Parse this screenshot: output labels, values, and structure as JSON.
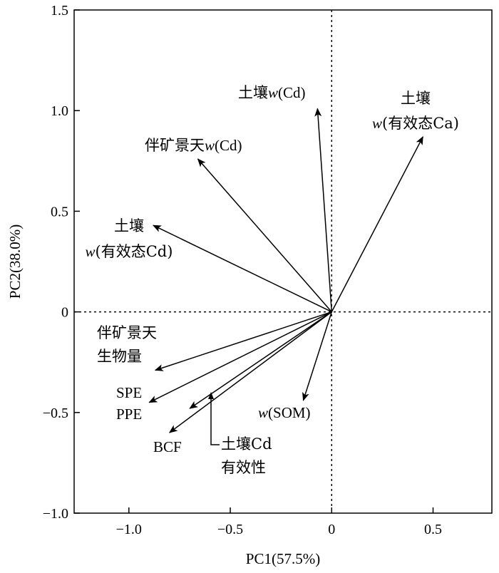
{
  "chart_data": {
    "type": "biplot",
    "xlabel": "PC1(57.5%)",
    "ylabel": "PC2(38.0%)",
    "xlim": [
      -1.27,
      0.79
    ],
    "ylim": [
      -1.0,
      1.5
    ],
    "x_ticks": [
      {
        "value": -1.0,
        "label": "−1.0"
      },
      {
        "value": -0.5,
        "label": "−0.5"
      },
      {
        "value": 0,
        "label": "0"
      },
      {
        "value": 0.5,
        "label": "0.5"
      }
    ],
    "y_ticks": [
      {
        "value": -1.0,
        "label": "−1.0"
      },
      {
        "value": -0.5,
        "label": "−0.5"
      },
      {
        "value": 0,
        "label": "0"
      },
      {
        "value": 0.5,
        "label": "0.5"
      },
      {
        "value": 1.0,
        "label": "1.0"
      },
      {
        "value": 1.5,
        "label": "1.5"
      }
    ],
    "reference_lines": {
      "x": 0,
      "y": 0,
      "style": "dotted"
    },
    "vectors": [
      {
        "id": "soil-cd",
        "x": -0.07,
        "y": 1.01
      },
      {
        "id": "soil-available-ca",
        "x": 0.45,
        "y": 0.87
      },
      {
        "id": "plant-cd",
        "x": -0.66,
        "y": 0.76
      },
      {
        "id": "soil-available-cd",
        "x": -0.88,
        "y": 0.43
      },
      {
        "id": "plant-biomass",
        "x": -0.87,
        "y": -0.29
      },
      {
        "id": "spe",
        "x": -0.9,
        "y": -0.45
      },
      {
        "id": "ppe",
        "x": -0.7,
        "y": -0.48
      },
      {
        "id": "bcf",
        "x": -0.8,
        "y": -0.6
      },
      {
        "id": "som",
        "x": -0.14,
        "y": -0.44
      }
    ],
    "labels": {
      "soil_cd": {
        "prefix": "土壤",
        "var": "w",
        "suffix": "(Cd)"
      },
      "soil_available_ca": {
        "line1": "土壤",
        "var": "w",
        "suffix": "(有效态Ca)"
      },
      "plant_cd": {
        "prefix": "伴矿景天",
        "var": "w",
        "suffix": "(Cd)"
      },
      "soil_available_cd": {
        "line1": "土壤",
        "var": "w",
        "suffix": "(有效态Cd)"
      },
      "plant_biomass": {
        "line1": "伴矿景天",
        "line2": "生物量"
      },
      "spe": "SPE",
      "ppe": "PPE",
      "bcf": "BCF",
      "som": {
        "var": "w",
        "suffix": "(SOM)"
      },
      "soil_cd_availability": {
        "line1": "土壤Cd",
        "line2": "有效性"
      }
    }
  }
}
